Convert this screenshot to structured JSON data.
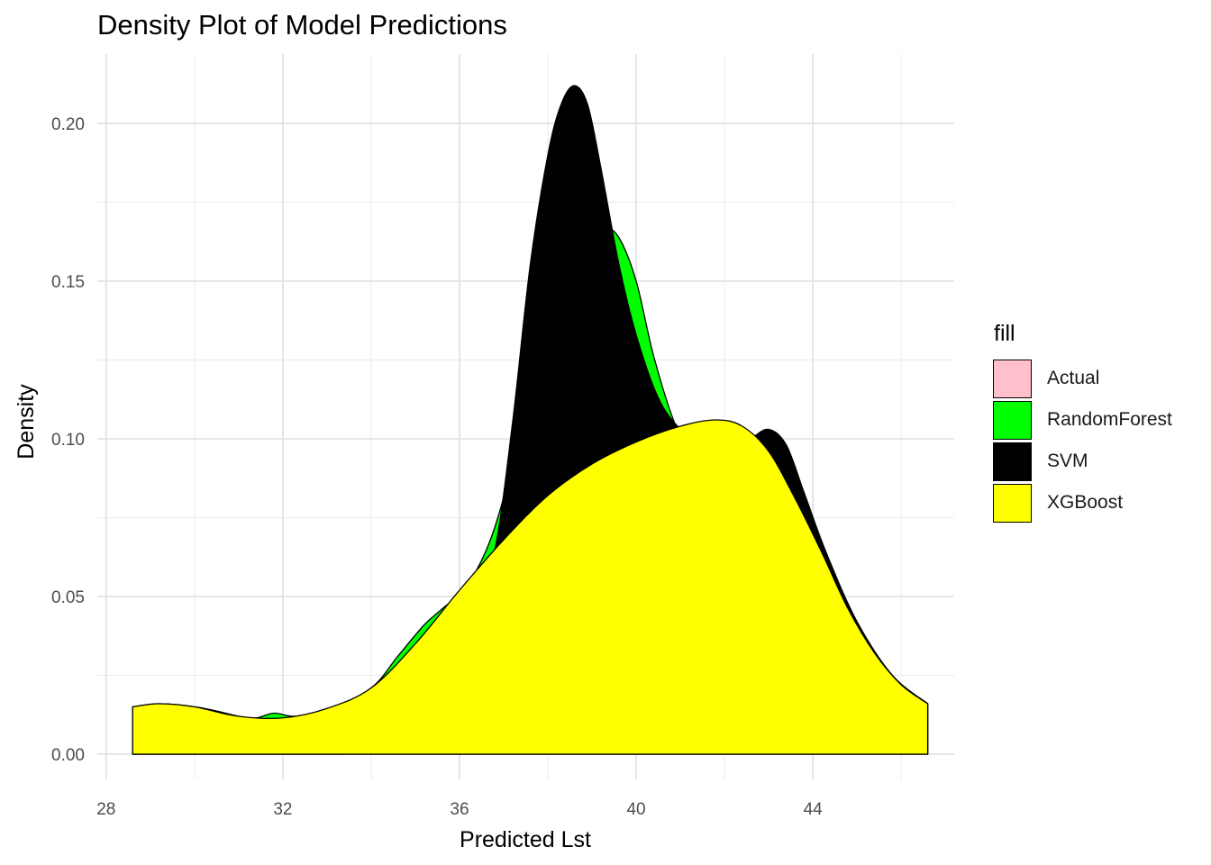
{
  "chart_data": {
    "type": "area",
    "title": "Density Plot of Model Predictions",
    "xlabel": "Predicted Lst",
    "ylabel": "Density",
    "xlim": [
      27.8,
      47.2
    ],
    "ylim": [
      -0.008,
      0.222
    ],
    "x_ticks": [
      28,
      32,
      36,
      40,
      44
    ],
    "y_ticks": [
      0.0,
      0.05,
      0.1,
      0.15,
      0.2
    ],
    "y_tick_labels": [
      "0.00",
      "0.05",
      "0.10",
      "0.15",
      "0.20"
    ],
    "grid": true,
    "legend": {
      "title": "fill",
      "placement": "right"
    },
    "series": [
      {
        "name": "Actual",
        "color": "#FFC0CB",
        "x": [
          28.6,
          29.6,
          30.6,
          31.6,
          32.6,
          33.4
        ],
        "y": [
          0.0,
          0.0,
          0.0,
          0.0,
          0.0,
          0.0
        ]
      },
      {
        "name": "RandomForest",
        "color": "#00FF00",
        "x": [
          28.6,
          29.2,
          30.0,
          31.0,
          31.4,
          31.8,
          32.3,
          33.0,
          34.0,
          34.6,
          35.2,
          35.6,
          36.2,
          36.8,
          37.4,
          38.0,
          38.6,
          39.2,
          39.6,
          40.0,
          40.4,
          40.9,
          41.3,
          41.8,
          42.4,
          43.0,
          43.6,
          44.2,
          45.0,
          45.8,
          46.6
        ],
        "y": [
          0.015,
          0.016,
          0.015,
          0.012,
          0.0115,
          0.013,
          0.012,
          0.014,
          0.021,
          0.031,
          0.041,
          0.046,
          0.054,
          0.072,
          0.105,
          0.15,
          0.171,
          0.168,
          0.164,
          0.15,
          0.126,
          0.104,
          0.096,
          0.098,
          0.101,
          0.098,
          0.084,
          0.066,
          0.042,
          0.025,
          0.016
        ]
      },
      {
        "name": "SVM",
        "color": "#000000",
        "x": [
          28.6,
          30.0,
          31.4,
          32.4,
          33.6,
          34.6,
          35.6,
          36.4,
          36.8,
          37.2,
          37.6,
          38.0,
          38.3,
          38.6,
          38.9,
          39.2,
          39.6,
          40.0,
          40.5,
          41.0,
          41.6,
          42.2,
          42.6,
          43.0,
          43.4,
          43.8,
          44.3,
          45.0,
          45.8,
          46.6
        ],
        "y": [
          0.015,
          0.015,
          0.011,
          0.012,
          0.015,
          0.025,
          0.044,
          0.056,
          0.065,
          0.105,
          0.155,
          0.19,
          0.206,
          0.212,
          0.206,
          0.186,
          0.156,
          0.133,
          0.113,
          0.103,
          0.096,
          0.096,
          0.1,
          0.103,
          0.098,
          0.083,
          0.064,
          0.042,
          0.025,
          0.016
        ]
      },
      {
        "name": "XGBoost",
        "color": "#FFFF00",
        "x": [
          28.6,
          29.2,
          30.0,
          31.0,
          32.0,
          33.0,
          34.0,
          35.0,
          36.0,
          37.0,
          38.0,
          39.0,
          40.0,
          41.0,
          41.8,
          42.4,
          43.0,
          43.6,
          44.2,
          44.8,
          45.4,
          46.0,
          46.6
        ],
        "y": [
          0.015,
          0.016,
          0.015,
          0.012,
          0.0115,
          0.0145,
          0.021,
          0.035,
          0.052,
          0.068,
          0.082,
          0.092,
          0.099,
          0.104,
          0.106,
          0.104,
          0.096,
          0.081,
          0.064,
          0.046,
          0.032,
          0.022,
          0.016
        ]
      }
    ]
  }
}
